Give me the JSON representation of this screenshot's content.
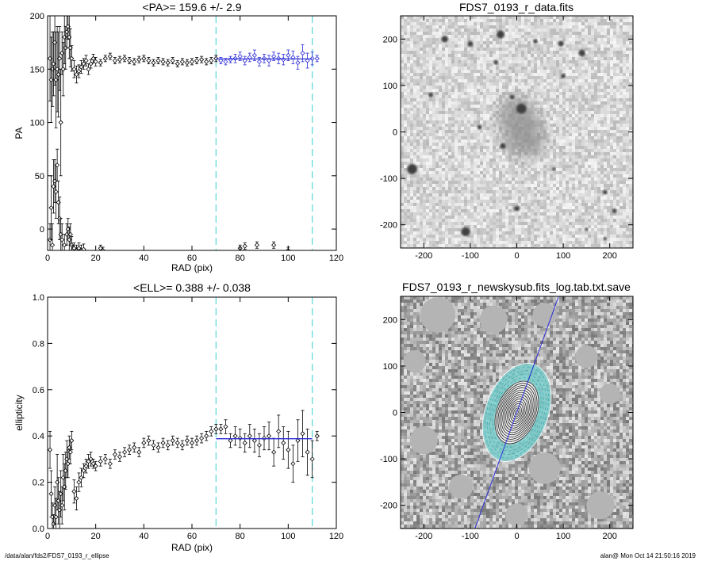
{
  "footer": {
    "path": "/data/alan/fds2/FDS7_0193_r_ellipse",
    "user_time": "alan@  Mon Oct 14 21:50:16 2019"
  },
  "chart_data": [
    {
      "type": "scatter",
      "title": "<PA>= 159.6 +/-   2.9",
      "xlabel": "RAD (pix)",
      "ylabel": "PA",
      "xlim": [
        0,
        120
      ],
      "ylim": [
        -20,
        200
      ],
      "xticks": [
        0,
        20,
        40,
        60,
        80,
        100,
        120
      ],
      "yticks": [
        0,
        50,
        100,
        150,
        200
      ],
      "vlines": [
        70,
        110
      ],
      "vline_color": "#5ad8d8",
      "fit": {
        "x0": 70,
        "x1": 110,
        "y": 159.6,
        "color": "#2b2bd6"
      },
      "series": [
        {
          "color": "#000000",
          "x": [
            1,
            1.5,
            2,
            2.5,
            3,
            3.5,
            4,
            4.5,
            5,
            5.5,
            6,
            6.5,
            7,
            7.5,
            8,
            8.5,
            9,
            9.5,
            10,
            11,
            12,
            13,
            14,
            15,
            16,
            17,
            18,
            19,
            20,
            22,
            24,
            26,
            28,
            30,
            32,
            34,
            36,
            38,
            40,
            42,
            44,
            46,
            48,
            50,
            52,
            54,
            56,
            58,
            60,
            62,
            64,
            66,
            68,
            70
          ],
          "y": [
            160,
            140,
            150,
            155,
            175,
            140,
            150,
            145,
            160,
            100,
            165,
            150,
            180,
            170,
            185,
            190,
            180,
            170,
            160,
            150,
            145,
            148,
            152,
            155,
            158,
            150,
            155,
            160,
            157,
            156,
            160,
            162,
            158,
            159,
            160,
            158,
            157,
            159,
            160,
            158,
            156,
            158,
            157,
            156,
            158,
            155,
            157,
            156,
            157,
            158,
            159,
            157,
            158,
            160
          ],
          "err": [
            40,
            40,
            35,
            30,
            40,
            45,
            40,
            40,
            30,
            50,
            20,
            25,
            25,
            20,
            15,
            12,
            20,
            18,
            12,
            8,
            8,
            6,
            6,
            5,
            5,
            5,
            4,
            4,
            4,
            3,
            3,
            3,
            3,
            3,
            3,
            3,
            3,
            3,
            3,
            3,
            3,
            3,
            3,
            3,
            3,
            3,
            3,
            3,
            3,
            3,
            3,
            3,
            3,
            3
          ]
        },
        {
          "color": "#000000",
          "x": [
            1,
            1.5,
            2,
            2.5,
            3,
            3.5,
            4,
            4.5,
            5,
            5.5,
            6,
            7,
            8,
            8.5,
            9,
            9.5,
            10,
            10.5,
            11,
            12,
            13,
            14,
            15,
            22,
            23,
            80,
            82,
            87,
            94,
            100
          ],
          "y": [
            -10,
            20,
            -15,
            40,
            45,
            35,
            60,
            25,
            10,
            -5,
            -10,
            -15,
            -5,
            0,
            -10,
            -5,
            -15,
            -20,
            -18,
            -20,
            -18,
            -20,
            -19,
            -18,
            -20,
            -18,
            -16,
            -15,
            -15,
            -20
          ],
          "err": [
            15,
            30,
            20,
            25,
            20,
            25,
            15,
            20,
            20,
            15,
            15,
            10,
            10,
            10,
            12,
            10,
            8,
            5,
            5,
            5,
            5,
            5,
            5,
            3,
            3,
            3,
            3,
            3,
            3,
            3
          ]
        },
        {
          "color": "#2b2bd6",
          "x": [
            72,
            74,
            76,
            78,
            80,
            82,
            84,
            86,
            88,
            90,
            92,
            94,
            96,
            98,
            100,
            102,
            104,
            106,
            108,
            110,
            112
          ],
          "y": [
            158,
            157,
            159,
            160,
            162,
            158,
            161,
            163,
            157,
            160,
            158,
            162,
            160,
            159,
            163,
            161,
            156,
            165,
            158,
            160,
            160
          ],
          "err": [
            3,
            3,
            3,
            4,
            4,
            4,
            4,
            5,
            4,
            4,
            5,
            4,
            5,
            5,
            5,
            6,
            6,
            8,
            7,
            6,
            3
          ]
        }
      ]
    },
    {
      "type": "scatter",
      "title": "<ELL>= 0.388 +/-  0.038",
      "xlabel": "RAD (pix)",
      "ylabel": "ellipticity",
      "xlim": [
        0,
        120
      ],
      "ylim": [
        0,
        1
      ],
      "xticks": [
        0,
        20,
        40,
        60,
        80,
        100,
        120
      ],
      "yticks": [
        0.0,
        0.2,
        0.4,
        0.6,
        0.8,
        1.0
      ],
      "vlines": [
        70,
        110
      ],
      "vline_color": "#5ad8d8",
      "fit": {
        "x0": 70,
        "x1": 110,
        "y": 0.388,
        "color": "#2b2bd6"
      },
      "series": [
        {
          "color": "#000000",
          "x": [
            1,
            1.5,
            2,
            2.5,
            3,
            3.5,
            4,
            4.5,
            5,
            5.5,
            6,
            6.5,
            7,
            7.5,
            8,
            8.5,
            9,
            9.5,
            10,
            11,
            12,
            13,
            14,
            15,
            16,
            17,
            18,
            19,
            20,
            22,
            24,
            26,
            28,
            30,
            32,
            34,
            36,
            38,
            40,
            42,
            44,
            46,
            48,
            50,
            52,
            54,
            56,
            58,
            60,
            62,
            64,
            66,
            68,
            70
          ],
          "y": [
            0.34,
            0.15,
            0.05,
            0.02,
            0.1,
            0.05,
            0.2,
            0.12,
            0.08,
            0.15,
            0.1,
            0.22,
            0.18,
            0.25,
            0.3,
            0.28,
            0.35,
            0.33,
            0.38,
            0.16,
            0.13,
            0.2,
            0.22,
            0.25,
            0.27,
            0.29,
            0.3,
            0.28,
            0.27,
            0.29,
            0.3,
            0.28,
            0.32,
            0.31,
            0.33,
            0.34,
            0.35,
            0.33,
            0.37,
            0.38,
            0.36,
            0.35,
            0.37,
            0.36,
            0.38,
            0.37,
            0.36,
            0.38,
            0.37,
            0.38,
            0.39,
            0.4,
            0.42,
            0.43
          ],
          "err": [
            0.08,
            0.1,
            0.06,
            0.04,
            0.08,
            0.08,
            0.12,
            0.1,
            0.08,
            0.1,
            0.08,
            0.1,
            0.1,
            0.08,
            0.08,
            0.06,
            0.05,
            0.05,
            0.04,
            0.05,
            0.05,
            0.04,
            0.04,
            0.03,
            0.03,
            0.03,
            0.03,
            0.02,
            0.02,
            0.02,
            0.02,
            0.02,
            0.02,
            0.02,
            0.02,
            0.02,
            0.02,
            0.02,
            0.02,
            0.02,
            0.02,
            0.02,
            0.02,
            0.02,
            0.02,
            0.02,
            0.02,
            0.02,
            0.02,
            0.02,
            0.02,
            0.02,
            0.02,
            0.02
          ]
        },
        {
          "color": "#000000",
          "x": [
            72,
            74,
            76,
            78,
            80,
            82,
            84,
            86,
            88,
            90,
            92,
            94,
            96,
            98,
            100,
            102,
            104,
            106,
            108,
            110,
            112
          ],
          "y": [
            0.43,
            0.44,
            0.38,
            0.4,
            0.39,
            0.37,
            0.4,
            0.38,
            0.36,
            0.39,
            0.4,
            0.33,
            0.42,
            0.37,
            0.34,
            0.28,
            0.38,
            0.41,
            0.33,
            0.3,
            0.4
          ],
          "err": [
            0.02,
            0.03,
            0.03,
            0.04,
            0.04,
            0.04,
            0.05,
            0.05,
            0.05,
            0.05,
            0.06,
            0.06,
            0.07,
            0.07,
            0.08,
            0.08,
            0.09,
            0.1,
            0.1,
            0.08,
            0.02
          ]
        }
      ]
    },
    {
      "type": "heatmap",
      "title": "FDS7_0193_r_data.fits",
      "xlim": [
        -250,
        250
      ],
      "ylim": [
        -250,
        250
      ],
      "xticks": [
        -200,
        -100,
        0,
        100,
        200
      ],
      "yticks": [
        -200,
        -100,
        0,
        100,
        200
      ],
      "colormap": "grayscale, inverted",
      "sources": [
        {
          "x": -155,
          "y": 200,
          "r": 6
        },
        {
          "x": -100,
          "y": 190,
          "r": 5
        },
        {
          "x": -35,
          "y": 210,
          "r": 7
        },
        {
          "x": 40,
          "y": 195,
          "r": 4
        },
        {
          "x": 95,
          "y": 190,
          "r": 5
        },
        {
          "x": 140,
          "y": 170,
          "r": 6
        },
        {
          "x": 100,
          "y": 120,
          "r": 4
        },
        {
          "x": -45,
          "y": 150,
          "r": 4
        },
        {
          "x": -185,
          "y": 80,
          "r": 4
        },
        {
          "x": 10,
          "y": 50,
          "r": 9
        },
        {
          "x": -10,
          "y": 75,
          "r": 4
        },
        {
          "x": -80,
          "y": 10,
          "r": 4
        },
        {
          "x": -30,
          "y": -30,
          "r": 5
        },
        {
          "x": -225,
          "y": -80,
          "r": 9
        },
        {
          "x": 0,
          "y": -165,
          "r": 5
        },
        {
          "x": -110,
          "y": -215,
          "r": 8
        },
        {
          "x": 80,
          "y": -80,
          "r": 3
        },
        {
          "x": 190,
          "y": -130,
          "r": 4
        },
        {
          "x": 210,
          "y": -170,
          "r": 4
        },
        {
          "x": 150,
          "y": -210,
          "r": 3
        },
        {
          "x": 190,
          "y": -230,
          "r": 3
        }
      ],
      "galaxy": {
        "x": 10,
        "y": 10,
        "rx": 45,
        "ry": 70,
        "angle_deg": -20
      }
    },
    {
      "type": "heatmap",
      "title": "FDS7_0193_r_newskysub.fits_log.tab.txt.save",
      "xlim": [
        -250,
        250
      ],
      "ylim": [
        -250,
        250
      ],
      "xticks": [
        -200,
        -100,
        0,
        100,
        200
      ],
      "yticks": [
        -200,
        -100,
        0,
        100,
        200
      ],
      "colormap": "grayscale",
      "major_axis_line": {
        "from": [
          -90,
          -250
        ],
        "to": [
          90,
          250
        ],
        "color": "#2b2bd6"
      },
      "contours": {
        "center": [
          0,
          0
        ],
        "max_a": 115,
        "ellipticity": 0.388,
        "pa_deg": 159.6,
        "count": 14
      },
      "fit_annulus": {
        "a_inner": 70,
        "a_outer": 110,
        "color": "#7fcfcf"
      }
    }
  ]
}
